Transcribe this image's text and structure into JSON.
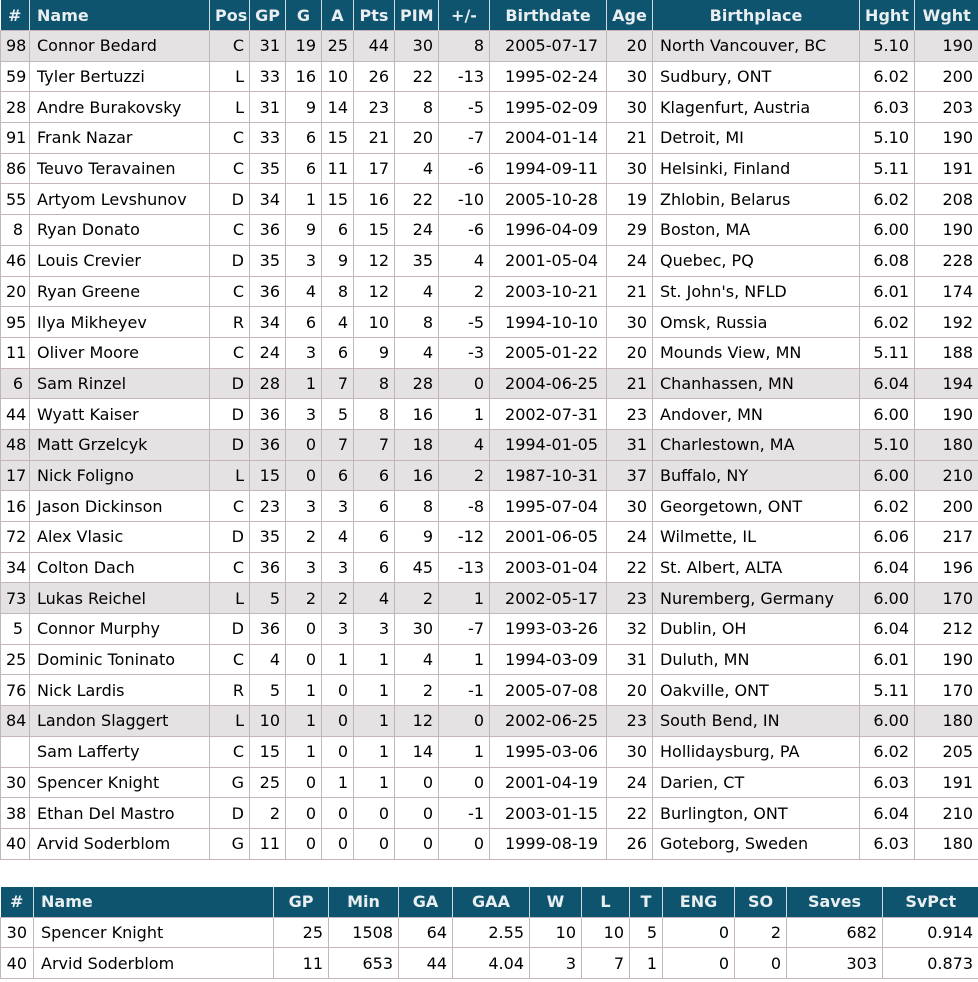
{
  "colors": {
    "header_bg": "#0e546e",
    "header_text": "#e9eef1",
    "row_highlight": "#e5e2e3",
    "border": "#c3b5b9"
  },
  "skater_table": {
    "columns": [
      "#",
      "Name",
      "Pos",
      "GP",
      "G",
      "A",
      "Pts",
      "PIM",
      "+/-",
      "Birthdate",
      "Age",
      "Birthplace",
      "Hght",
      "Wght"
    ],
    "rows": [
      {
        "highlight": true,
        "cells": [
          "98",
          "Connor Bedard",
          "C",
          "31",
          "19",
          "25",
          "44",
          "30",
          "8",
          "2005-07-17",
          "20",
          "North Vancouver, BC",
          "5.10",
          "190"
        ]
      },
      {
        "highlight": false,
        "cells": [
          "59",
          "Tyler Bertuzzi",
          "L",
          "33",
          "16",
          "10",
          "26",
          "22",
          "-13",
          "1995-02-24",
          "30",
          "Sudbury, ONT",
          "6.02",
          "200"
        ]
      },
      {
        "highlight": false,
        "cells": [
          "28",
          "Andre Burakovsky",
          "L",
          "31",
          "9",
          "14",
          "23",
          "8",
          "-5",
          "1995-02-09",
          "30",
          "Klagenfurt, Austria",
          "6.03",
          "203"
        ]
      },
      {
        "highlight": false,
        "cells": [
          "91",
          "Frank Nazar",
          "C",
          "33",
          "6",
          "15",
          "21",
          "20",
          "-7",
          "2004-01-14",
          "21",
          "Detroit, MI",
          "5.10",
          "190"
        ]
      },
      {
        "highlight": false,
        "cells": [
          "86",
          "Teuvo Teravainen",
          "C",
          "35",
          "6",
          "11",
          "17",
          "4",
          "-6",
          "1994-09-11",
          "30",
          "Helsinki, Finland",
          "5.11",
          "191"
        ]
      },
      {
        "highlight": false,
        "cells": [
          "55",
          "Artyom Levshunov",
          "D",
          "34",
          "1",
          "15",
          "16",
          "22",
          "-10",
          "2005-10-28",
          "19",
          "Zhlobin, Belarus",
          "6.02",
          "208"
        ]
      },
      {
        "highlight": false,
        "cells": [
          "8",
          "Ryan Donato",
          "C",
          "36",
          "9",
          "6",
          "15",
          "24",
          "-6",
          "1996-04-09",
          "29",
          "Boston, MA",
          "6.00",
          "190"
        ]
      },
      {
        "highlight": false,
        "cells": [
          "46",
          "Louis Crevier",
          "D",
          "35",
          "3",
          "9",
          "12",
          "35",
          "4",
          "2001-05-04",
          "24",
          "Quebec, PQ",
          "6.08",
          "228"
        ]
      },
      {
        "highlight": false,
        "cells": [
          "20",
          "Ryan Greene",
          "C",
          "36",
          "4",
          "8",
          "12",
          "4",
          "2",
          "2003-10-21",
          "21",
          "St. John's, NFLD",
          "6.01",
          "174"
        ]
      },
      {
        "highlight": false,
        "cells": [
          "95",
          "Ilya Mikheyev",
          "R",
          "34",
          "6",
          "4",
          "10",
          "8",
          "-5",
          "1994-10-10",
          "30",
          "Omsk, Russia",
          "6.02",
          "192"
        ]
      },
      {
        "highlight": false,
        "cells": [
          "11",
          "Oliver Moore",
          "C",
          "24",
          "3",
          "6",
          "9",
          "4",
          "-3",
          "2005-01-22",
          "20",
          "Mounds View, MN",
          "5.11",
          "188"
        ]
      },
      {
        "highlight": true,
        "cells": [
          "6",
          "Sam Rinzel",
          "D",
          "28",
          "1",
          "7",
          "8",
          "28",
          "0",
          "2004-06-25",
          "21",
          "Chanhassen, MN",
          "6.04",
          "194"
        ]
      },
      {
        "highlight": false,
        "cells": [
          "44",
          "Wyatt Kaiser",
          "D",
          "36",
          "3",
          "5",
          "8",
          "16",
          "1",
          "2002-07-31",
          "23",
          "Andover, MN",
          "6.00",
          "190"
        ]
      },
      {
        "highlight": true,
        "cells": [
          "48",
          "Matt Grzelcyk",
          "D",
          "36",
          "0",
          "7",
          "7",
          "18",
          "4",
          "1994-01-05",
          "31",
          "Charlestown, MA",
          "5.10",
          "180"
        ]
      },
      {
        "highlight": true,
        "cells": [
          "17",
          "Nick Foligno",
          "L",
          "15",
          "0",
          "6",
          "6",
          "16",
          "2",
          "1987-10-31",
          "37",
          "Buffalo, NY",
          "6.00",
          "210"
        ]
      },
      {
        "highlight": false,
        "cells": [
          "16",
          "Jason Dickinson",
          "C",
          "23",
          "3",
          "3",
          "6",
          "8",
          "-8",
          "1995-07-04",
          "30",
          "Georgetown, ONT",
          "6.02",
          "200"
        ]
      },
      {
        "highlight": false,
        "cells": [
          "72",
          "Alex Vlasic",
          "D",
          "35",
          "2",
          "4",
          "6",
          "9",
          "-12",
          "2001-06-05",
          "24",
          "Wilmette, IL",
          "6.06",
          "217"
        ]
      },
      {
        "highlight": false,
        "cells": [
          "34",
          "Colton Dach",
          "C",
          "36",
          "3",
          "3",
          "6",
          "45",
          "-13",
          "2003-01-04",
          "22",
          "St. Albert, ALTA",
          "6.04",
          "196"
        ]
      },
      {
        "highlight": true,
        "cells": [
          "73",
          "Lukas Reichel",
          "L",
          "5",
          "2",
          "2",
          "4",
          "2",
          "1",
          "2002-05-17",
          "23",
          "Nuremberg, Germany",
          "6.00",
          "170"
        ]
      },
      {
        "highlight": false,
        "cells": [
          "5",
          "Connor Murphy",
          "D",
          "36",
          "0",
          "3",
          "3",
          "30",
          "-7",
          "1993-03-26",
          "32",
          "Dublin, OH",
          "6.04",
          "212"
        ]
      },
      {
        "highlight": false,
        "cells": [
          "25",
          "Dominic Toninato",
          "C",
          "4",
          "0",
          "1",
          "1",
          "4",
          "1",
          "1994-03-09",
          "31",
          "Duluth, MN",
          "6.01",
          "190"
        ]
      },
      {
        "highlight": false,
        "cells": [
          "76",
          "Nick Lardis",
          "R",
          "5",
          "1",
          "0",
          "1",
          "2",
          "-1",
          "2005-07-08",
          "20",
          "Oakville, ONT",
          "5.11",
          "170"
        ]
      },
      {
        "highlight": true,
        "cells": [
          "84",
          "Landon Slaggert",
          "L",
          "10",
          "1",
          "0",
          "1",
          "12",
          "0",
          "2002-06-25",
          "23",
          "South Bend, IN",
          "6.00",
          "180"
        ]
      },
      {
        "highlight": false,
        "cells": [
          "",
          "Sam Lafferty",
          "C",
          "15",
          "1",
          "0",
          "1",
          "14",
          "1",
          "1995-03-06",
          "30",
          "Hollidaysburg, PA",
          "6.02",
          "205"
        ]
      },
      {
        "highlight": false,
        "cells": [
          "30",
          "Spencer Knight",
          "G",
          "25",
          "0",
          "1",
          "1",
          "0",
          "0",
          "2001-04-19",
          "24",
          "Darien, CT",
          "6.03",
          "191"
        ]
      },
      {
        "highlight": false,
        "cells": [
          "38",
          "Ethan Del Mastro",
          "D",
          "2",
          "0",
          "0",
          "0",
          "0",
          "-1",
          "2003-01-15",
          "22",
          "Burlington, ONT",
          "6.04",
          "210"
        ]
      },
      {
        "highlight": false,
        "cells": [
          "40",
          "Arvid Soderblom",
          "G",
          "11",
          "0",
          "0",
          "0",
          "0",
          "0",
          "1999-08-19",
          "26",
          "Goteborg, Sweden",
          "6.03",
          "180"
        ]
      }
    ]
  },
  "goalie_table": {
    "columns": [
      "#",
      "Name",
      "GP",
      "Min",
      "GA",
      "GAA",
      "W",
      "L",
      "T",
      "ENG",
      "SO",
      "Saves",
      "SvPct"
    ],
    "rows": [
      {
        "highlight": false,
        "cells": [
          "30",
          "Spencer Knight",
          "25",
          "1508",
          "64",
          "2.55",
          "10",
          "10",
          "5",
          "0",
          "2",
          "682",
          "0.914"
        ]
      },
      {
        "highlight": false,
        "cells": [
          "40",
          "Arvid Soderblom",
          "11",
          "653",
          "44",
          "4.04",
          "3",
          "7",
          "1",
          "0",
          "0",
          "303",
          "0.873"
        ]
      }
    ]
  }
}
